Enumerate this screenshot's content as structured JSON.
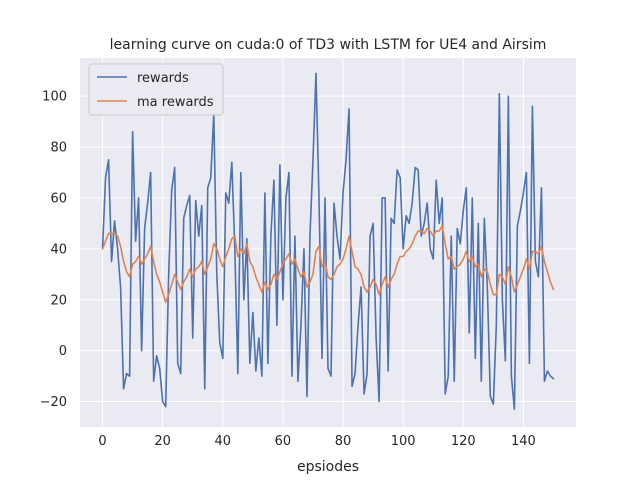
{
  "chart_data": {
    "type": "line",
    "title": "learning curve on cuda:0 of TD3 with LSTM for UE4 and Airsim",
    "xlabel": "epsiodes",
    "ylabel": "",
    "xlim": [
      -7.5,
      157.5
    ],
    "ylim": [
      -30,
      115
    ],
    "xticks": [
      0,
      20,
      40,
      60,
      80,
      100,
      120,
      140
    ],
    "yticks": [
      -20,
      0,
      20,
      40,
      60,
      80,
      100
    ],
    "grid": true,
    "legend_position": "top-left",
    "series": [
      {
        "name": "rewards",
        "color": "#4c72b0",
        "values": [
          40,
          68,
          75,
          35,
          51,
          40,
          25,
          -15,
          -9,
          -10,
          86,
          43,
          60,
          0,
          48,
          58,
          70,
          -12,
          -2,
          -7,
          -20,
          -22,
          30,
          63,
          72,
          -5,
          -9,
          52,
          57,
          61,
          5,
          59,
          45,
          57,
          -15,
          64,
          68,
          93,
          30,
          3,
          -3,
          62,
          58,
          74,
          40,
          -9,
          70,
          20,
          44,
          -5,
          15,
          -8,
          5,
          -10,
          62,
          -5,
          45,
          67,
          10,
          73,
          20,
          60,
          70,
          -10,
          45,
          -12,
          10,
          40,
          -18,
          45,
          75,
          109,
          60,
          -3,
          60,
          -7,
          -10,
          58,
          45,
          36,
          62,
          75,
          95,
          -14,
          -9,
          10,
          25,
          -17,
          -9,
          45,
          50,
          5,
          -20,
          60,
          60,
          -8,
          52,
          50,
          71,
          68,
          40,
          53,
          50,
          58,
          72,
          71,
          45,
          50,
          58,
          40,
          36,
          67,
          50,
          60,
          -17,
          -10,
          45,
          -12,
          48,
          42,
          55,
          64,
          7,
          60,
          -3,
          50,
          -12,
          52,
          25,
          -18,
          -21,
          10,
          101,
          20,
          -4,
          100,
          -10,
          -23,
          49,
          55,
          62,
          70,
          -5,
          96,
          35,
          29,
          64,
          -12,
          -8,
          -10,
          -11
        ],
        "label_note": ""
      },
      {
        "name": "ma rewards",
        "color": "#dd8452",
        "values": [
          40,
          43,
          46,
          46,
          46,
          45,
          41,
          35,
          31,
          29,
          34,
          35,
          37,
          34,
          36,
          38,
          41,
          35,
          30,
          27,
          23,
          19,
          22,
          26,
          30,
          27,
          24,
          27,
          29,
          32,
          29,
          32,
          33,
          35,
          30,
          33,
          36,
          42,
          40,
          36,
          33,
          37,
          40,
          44,
          45,
          37,
          40,
          38,
          42,
          35,
          33,
          29,
          26,
          23,
          27,
          24,
          26,
          30,
          28,
          31,
          34,
          36,
          38,
          34,
          36,
          32,
          29,
          31,
          25,
          27,
          30,
          39,
          41,
          33,
          35,
          29,
          28,
          30,
          33,
          34,
          36,
          40,
          45,
          39,
          33,
          32,
          30,
          25,
          23,
          25,
          28,
          26,
          22,
          26,
          29,
          25,
          28,
          30,
          34,
          37,
          37,
          39,
          40,
          42,
          45,
          47,
          47,
          46,
          48,
          47,
          45,
          47,
          47,
          49,
          42,
          36,
          37,
          32,
          33,
          34,
          36,
          39,
          35,
          37,
          33,
          34,
          29,
          32,
          31,
          26,
          22,
          22,
          30,
          29,
          26,
          33,
          29,
          23,
          26,
          29,
          32,
          36,
          32,
          39,
          39,
          38,
          41,
          35,
          31,
          27,
          24
        ],
        "label_note": ""
      }
    ]
  }
}
